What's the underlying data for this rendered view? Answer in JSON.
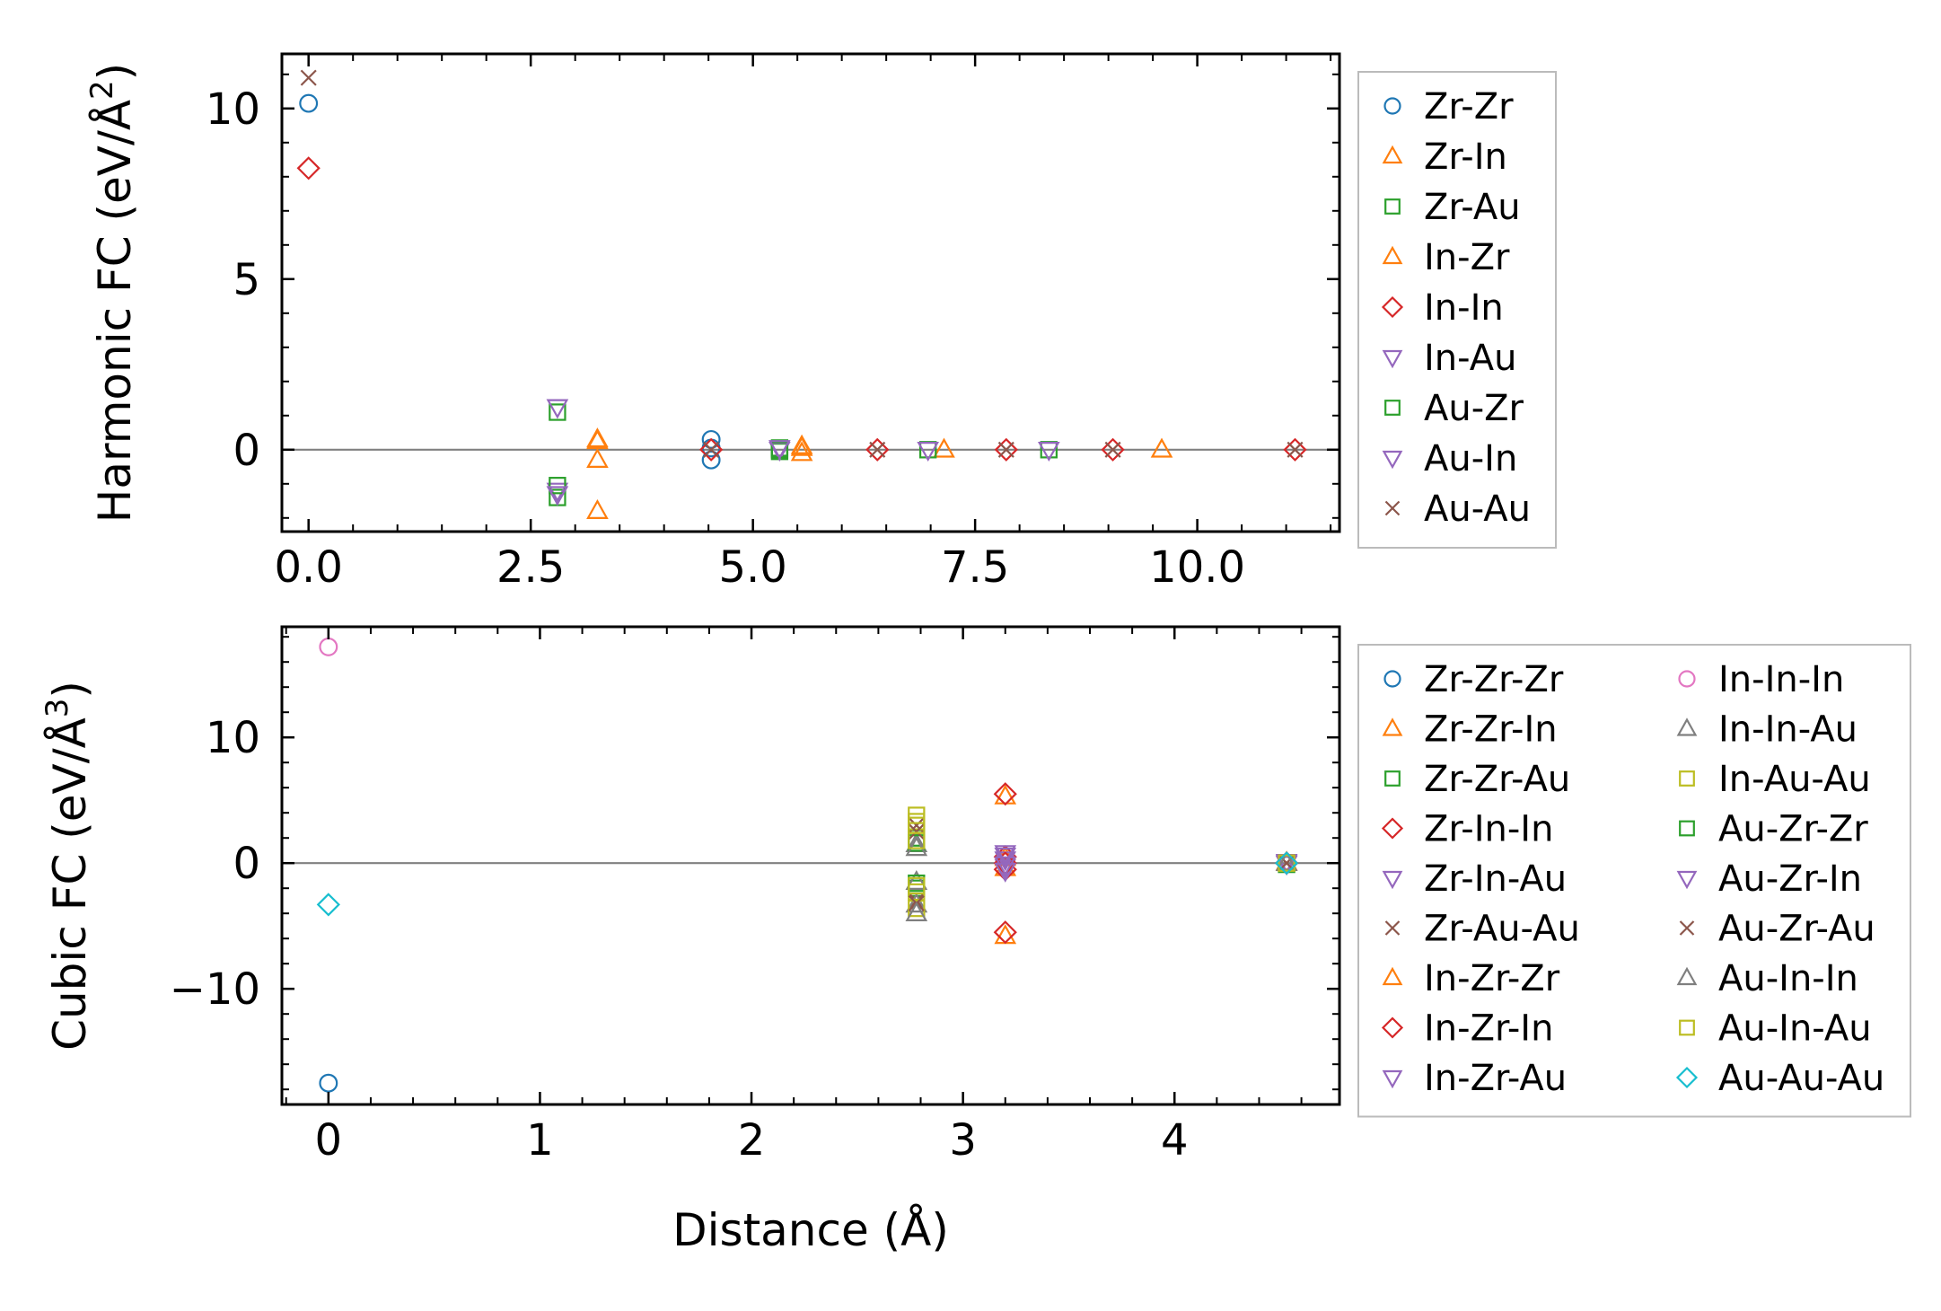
{
  "chart_data": [
    {
      "type": "scatter",
      "panel": "top",
      "xlabel": "",
      "ylabel_base": "Harmonic FC (eV/Å",
      "ylabel_sup": "2",
      "ylabel_close": ")",
      "xlim": [
        -0.3,
        11.6
      ],
      "ylim": [
        -2.4,
        11.6
      ],
      "xticks": [
        0.0,
        2.5,
        5.0,
        7.5,
        10.0
      ],
      "xtick_labels": [
        "0.0",
        "2.5",
        "5.0",
        "7.5",
        "10.0"
      ],
      "yticks": [
        0,
        5,
        10
      ],
      "ytick_labels": [
        "0",
        "5",
        "10"
      ],
      "zero_line": true,
      "legend_position": "outside-right",
      "legend_columns": 1,
      "series": [
        {
          "name": "Zr-Zr",
          "marker": "circle",
          "color": "#1f77b4",
          "points": [
            [
              0.0,
              10.15
            ],
            [
              4.53,
              0.3
            ],
            [
              4.53,
              -0.3
            ],
            [
              4.53,
              0.05
            ]
          ]
        },
        {
          "name": "Zr-In",
          "marker": "triangle-up",
          "color": "#ff7f0e",
          "points": [
            [
              3.25,
              0.3
            ],
            [
              3.25,
              -0.3
            ],
            [
              3.25,
              -1.8
            ],
            [
              5.55,
              0.1
            ],
            [
              5.55,
              -0.1
            ],
            [
              7.15,
              0.0
            ],
            [
              9.6,
              0.0
            ]
          ]
        },
        {
          "name": "Zr-Au",
          "marker": "square",
          "color": "#2ca02c",
          "points": [
            [
              2.8,
              1.1
            ],
            [
              2.8,
              -1.4
            ],
            [
              5.3,
              0.05
            ],
            [
              5.3,
              -0.05
            ],
            [
              6.97,
              0.0
            ],
            [
              8.33,
              0.0
            ]
          ]
        },
        {
          "name": "In-Zr",
          "marker": "triangle-up",
          "color": "#ff7f0e",
          "points": [
            [
              5.55,
              0.05
            ],
            [
              3.25,
              0.25
            ]
          ]
        },
        {
          "name": "In-In",
          "marker": "diamond",
          "color": "#d62728",
          "points": [
            [
              0.0,
              8.25
            ],
            [
              4.53,
              0.0
            ],
            [
              6.4,
              0.0
            ],
            [
              7.85,
              0.0
            ],
            [
              9.05,
              0.0
            ],
            [
              11.1,
              0.0
            ]
          ]
        },
        {
          "name": "In-Au",
          "marker": "triangle-down",
          "color": "#9467bd",
          "points": [
            [
              2.8,
              1.25
            ],
            [
              2.8,
              -1.2
            ],
            [
              5.3,
              0.0
            ],
            [
              6.97,
              0.0
            ]
          ]
        },
        {
          "name": "Au-Zr",
          "marker": "square",
          "color": "#2ca02c",
          "points": [
            [
              2.8,
              -1.05
            ],
            [
              5.3,
              0.0
            ]
          ]
        },
        {
          "name": "Au-In",
          "marker": "triangle-down",
          "color": "#9467bd",
          "points": [
            [
              2.8,
              -1.3
            ],
            [
              5.3,
              0.05
            ],
            [
              8.33,
              0.0
            ]
          ]
        },
        {
          "name": "Au-Au",
          "marker": "x",
          "color": "#8c564b",
          "points": [
            [
              0.0,
              10.9
            ],
            [
              4.53,
              0.0
            ],
            [
              6.4,
              0.0
            ],
            [
              7.85,
              0.0
            ],
            [
              9.05,
              0.0
            ],
            [
              11.1,
              0.0
            ]
          ]
        }
      ]
    },
    {
      "type": "scatter",
      "panel": "bottom",
      "xlabel": "Distance (Å)",
      "ylabel_base": "Cubic FC (eV/Å",
      "ylabel_sup": "3",
      "ylabel_close": ")",
      "xlim": [
        -0.22,
        4.78
      ],
      "ylim": [
        -19.2,
        18.8
      ],
      "xticks": [
        0,
        1,
        2,
        3,
        4
      ],
      "xtick_labels": [
        "0",
        "1",
        "2",
        "3",
        "4"
      ],
      "yticks": [
        -10,
        0,
        10
      ],
      "ytick_labels": [
        "−10",
        "0",
        "10"
      ],
      "zero_line": true,
      "legend_position": "outside-right",
      "legend_columns": 2,
      "series": [
        {
          "name": "Zr-Zr-Zr",
          "marker": "circle",
          "color": "#1f77b4",
          "points": [
            [
              0.0,
              -17.5
            ],
            [
              4.53,
              0.0
            ]
          ]
        },
        {
          "name": "Zr-Zr-In",
          "marker": "triangle-up",
          "color": "#ff7f0e",
          "points": [
            [
              3.2,
              0.4
            ],
            [
              3.2,
              -0.4
            ],
            [
              4.53,
              0.0
            ]
          ]
        },
        {
          "name": "Zr-Zr-Au",
          "marker": "square",
          "color": "#2ca02c",
          "points": [
            [
              2.78,
              2.0
            ],
            [
              2.78,
              -2.0
            ],
            [
              4.53,
              -0.1
            ]
          ]
        },
        {
          "name": "Zr-In-In",
          "marker": "diamond",
          "color": "#d62728",
          "points": [
            [
              3.2,
              0.5
            ],
            [
              3.2,
              -0.5
            ],
            [
              4.53,
              0.0
            ]
          ]
        },
        {
          "name": "Zr-In-Au",
          "marker": "triangle-down",
          "color": "#9467bd",
          "points": [
            [
              3.2,
              0.3
            ],
            [
              3.2,
              -0.3
            ],
            [
              4.53,
              0.1
            ]
          ]
        },
        {
          "name": "Zr-Au-Au",
          "marker": "x",
          "color": "#8c564b",
          "points": [
            [
              2.78,
              3.0
            ],
            [
              2.78,
              -3.0
            ],
            [
              4.53,
              0.0
            ]
          ]
        },
        {
          "name": "In-Zr-Zr",
          "marker": "triangle-up",
          "color": "#ff7f0e",
          "points": [
            [
              3.2,
              -5.8
            ],
            [
              3.2,
              5.3
            ],
            [
              4.53,
              0.05
            ]
          ]
        },
        {
          "name": "In-Zr-In",
          "marker": "diamond",
          "color": "#d62728",
          "points": [
            [
              3.2,
              5.5
            ],
            [
              3.2,
              -5.5
            ],
            [
              3.2,
              0.0
            ],
            [
              4.53,
              0.0
            ]
          ]
        },
        {
          "name": "In-Zr-Au",
          "marker": "triangle-down",
          "color": "#9467bd",
          "points": [
            [
              3.2,
              0.6
            ],
            [
              3.2,
              -0.1
            ],
            [
              4.53,
              -0.05
            ]
          ]
        },
        {
          "name": "In-In-In",
          "marker": "circle",
          "color": "#e377c2",
          "points": [
            [
              0.0,
              17.2
            ],
            [
              4.53,
              0.0
            ]
          ]
        },
        {
          "name": "In-In-Au",
          "marker": "triangle-up",
          "color": "#7f7f7f",
          "points": [
            [
              2.78,
              1.5
            ],
            [
              2.78,
              -1.5
            ],
            [
              2.78,
              -3.3
            ],
            [
              4.53,
              0.0
            ]
          ]
        },
        {
          "name": "In-Au-Au",
          "marker": "square",
          "color": "#bcbd22",
          "points": [
            [
              2.78,
              3.8
            ],
            [
              2.78,
              3.3
            ],
            [
              2.78,
              -2.3
            ],
            [
              2.78,
              -3.6
            ],
            [
              4.53,
              0.0
            ]
          ]
        },
        {
          "name": "Au-Zr-Zr",
          "marker": "square",
          "color": "#2ca02c",
          "points": [
            [
              2.78,
              1.6
            ],
            [
              2.78,
              -1.6
            ],
            [
              4.53,
              0.0
            ]
          ]
        },
        {
          "name": "Au-Zr-In",
          "marker": "triangle-down",
          "color": "#9467bd",
          "points": [
            [
              3.2,
              0.8
            ],
            [
              3.2,
              -0.6
            ],
            [
              4.53,
              0.0
            ]
          ]
        },
        {
          "name": "Au-Zr-Au",
          "marker": "x",
          "color": "#8c564b",
          "points": [
            [
              2.78,
              2.5
            ],
            [
              2.78,
              -3.2
            ],
            [
              4.53,
              0.0
            ]
          ]
        },
        {
          "name": "Au-In-In",
          "marker": "triangle-up",
          "color": "#7f7f7f",
          "points": [
            [
              2.78,
              1.2
            ],
            [
              2.78,
              -4.0
            ],
            [
              4.53,
              0.0
            ]
          ]
        },
        {
          "name": "Au-In-Au",
          "marker": "square",
          "color": "#bcbd22",
          "points": [
            [
              2.78,
              3.0
            ],
            [
              2.78,
              -1.8
            ],
            [
              2.78,
              1.8
            ],
            [
              4.53,
              0.0
            ]
          ]
        },
        {
          "name": "Au-Au-Au",
          "marker": "diamond",
          "color": "#17becf",
          "points": [
            [
              0.0,
              -3.3
            ],
            [
              4.53,
              0.0
            ]
          ]
        }
      ]
    }
  ]
}
